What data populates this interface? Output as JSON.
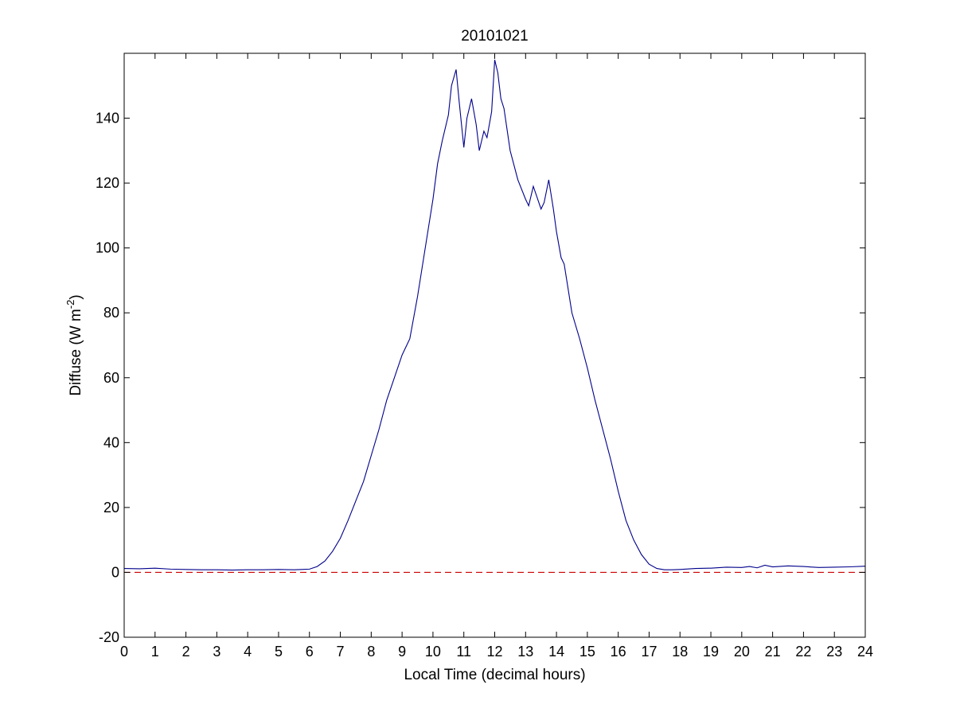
{
  "chart_data": {
    "type": "line",
    "title": "20101021",
    "xlabel": "Local Time (decimal hours)",
    "ylabel_base": "Diffuse (W m",
    "ylabel_sup": "-2",
    "ylabel_close": ")",
    "xlim": [
      0,
      24
    ],
    "ylim": [
      -20,
      160
    ],
    "xticks": [
      0,
      1,
      2,
      3,
      4,
      5,
      6,
      7,
      8,
      9,
      10,
      11,
      12,
      13,
      14,
      15,
      16,
      17,
      18,
      19,
      20,
      21,
      22,
      23,
      24
    ],
    "yticks": [
      -20,
      0,
      20,
      40,
      60,
      80,
      100,
      120,
      140
    ],
    "grid": false,
    "legend": "none",
    "series": [
      {
        "color": "#00008b",
        "style": "solid",
        "x": [
          0,
          0.5,
          1,
          1.5,
          2,
          2.5,
          3,
          3.5,
          4,
          4.5,
          5,
          5.5,
          6,
          6.25,
          6.5,
          6.75,
          7,
          7.25,
          7.5,
          7.75,
          8,
          8.25,
          8.5,
          8.75,
          9,
          9.25,
          9.5,
          9.75,
          10,
          10.15,
          10.3,
          10.5,
          10.6,
          10.75,
          10.85,
          11,
          11.1,
          11.25,
          11.4,
          11.5,
          11.65,
          11.75,
          11.9,
          12,
          12.1,
          12.2,
          12.3,
          12.5,
          12.75,
          13,
          13.1,
          13.25,
          13.5,
          13.6,
          13.75,
          13.9,
          14,
          14.15,
          14.25,
          14.5,
          14.75,
          15,
          15.25,
          15.5,
          15.75,
          16,
          16.25,
          16.5,
          16.75,
          17,
          17.25,
          17.5,
          17.75,
          18,
          18.5,
          19,
          19.5,
          20,
          20.25,
          20.5,
          20.75,
          21,
          21.5,
          22,
          22.5,
          23,
          23.5,
          24
        ],
        "y": [
          1.2,
          1.1,
          1.3,
          1.0,
          0.9,
          0.8,
          0.8,
          0.7,
          0.8,
          0.8,
          0.9,
          0.8,
          1.0,
          1.8,
          3.5,
          6.5,
          10.5,
          16,
          22,
          28,
          36,
          44,
          53,
          60,
          67,
          72,
          85,
          100,
          115,
          126,
          133,
          141,
          150,
          155,
          145,
          131,
          140,
          146,
          138,
          130,
          136,
          134,
          142,
          158,
          154,
          146,
          143,
          130,
          121,
          115,
          113,
          119,
          112,
          114,
          121,
          112,
          105,
          97,
          95,
          80,
          72,
          63,
          53,
          44,
          35,
          25,
          16,
          10,
          5.5,
          2.5,
          1.2,
          0.8,
          0.8,
          0.9,
          1.2,
          1.3,
          1.6,
          1.5,
          1.8,
          1.4,
          2.2,
          1.7,
          2.0,
          1.8,
          1.5,
          1.6,
          1.7,
          1.9
        ]
      },
      {
        "color": "#cc0000",
        "style": "dashed",
        "x": [
          0,
          24
        ],
        "y": [
          0,
          0
        ]
      }
    ]
  }
}
